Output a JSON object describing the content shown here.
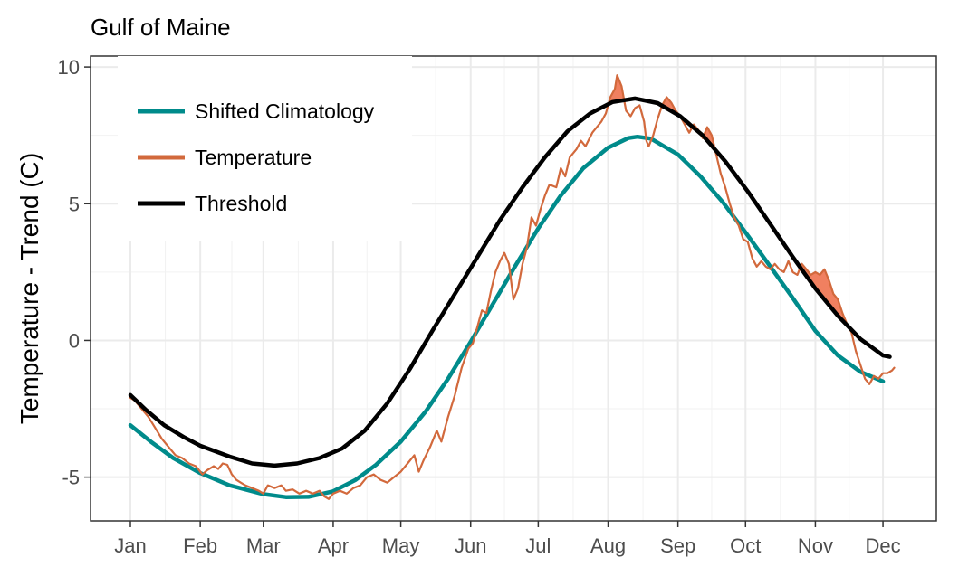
{
  "chart_data": {
    "type": "line",
    "title": "Gulf of Maine",
    "xlabel": "",
    "ylabel": "Temperature - Trend (C)",
    "xlim": [
      1,
      341
    ],
    "ylim": [
      -6.6,
      10.4
    ],
    "x_ticks": [
      {
        "label": "Jan",
        "x": 1
      },
      {
        "label": "Feb",
        "x": 32
      },
      {
        "label": "Mar",
        "x": 60
      },
      {
        "label": "Apr",
        "x": 91
      },
      {
        "label": "May",
        "x": 121
      },
      {
        "label": "Jun",
        "x": 152
      },
      {
        "label": "Jul",
        "x": 182
      },
      {
        "label": "Aug",
        "x": 213
      },
      {
        "label": "Sep",
        "x": 244
      },
      {
        "label": "Oct",
        "x": 274
      },
      {
        "label": "Nov",
        "x": 305
      },
      {
        "label": "Dec",
        "x": 335
      }
    ],
    "y_ticks": [
      -5,
      0,
      5,
      10
    ],
    "grid": true,
    "legend_position": "top-left",
    "heatwave_fill_color": "#f08060",
    "series": [
      {
        "name": "Shifted Climatology",
        "color": "#008b8b",
        "points": [
          [
            1,
            -3.1
          ],
          [
            10,
            -3.7
          ],
          [
            20,
            -4.3
          ],
          [
            32,
            -4.85
          ],
          [
            45,
            -5.3
          ],
          [
            60,
            -5.62
          ],
          [
            70,
            -5.73
          ],
          [
            80,
            -5.72
          ],
          [
            91,
            -5.52
          ],
          [
            101,
            -5.1
          ],
          [
            110,
            -4.55
          ],
          [
            121,
            -3.7
          ],
          [
            132,
            -2.6
          ],
          [
            142,
            -1.4
          ],
          [
            152,
            -0.05
          ],
          [
            162,
            1.35
          ],
          [
            172,
            2.75
          ],
          [
            182,
            4.1
          ],
          [
            192,
            5.3
          ],
          [
            202,
            6.3
          ],
          [
            213,
            7.05
          ],
          [
            222,
            7.4
          ],
          [
            226,
            7.45
          ],
          [
            232,
            7.38
          ],
          [
            244,
            6.8
          ],
          [
            254,
            6.0
          ],
          [
            264,
            5.05
          ],
          [
            274,
            3.95
          ],
          [
            285,
            2.7
          ],
          [
            295,
            1.55
          ],
          [
            305,
            0.35
          ],
          [
            315,
            -0.55
          ],
          [
            325,
            -1.15
          ],
          [
            335,
            -1.5
          ]
        ]
      },
      {
        "name": "Temperature",
        "color": "#d2693c",
        "points": [
          [
            1,
            -2.1
          ],
          [
            3,
            -2.2
          ],
          [
            6,
            -2.5
          ],
          [
            9,
            -2.8
          ],
          [
            12,
            -3.2
          ],
          [
            15,
            -3.6
          ],
          [
            18,
            -3.9
          ],
          [
            21,
            -4.2
          ],
          [
            24,
            -4.3
          ],
          [
            27,
            -4.5
          ],
          [
            30,
            -4.6
          ],
          [
            33,
            -4.9
          ],
          [
            35,
            -4.75
          ],
          [
            38,
            -4.6
          ],
          [
            40,
            -4.7
          ],
          [
            42,
            -4.5
          ],
          [
            44,
            -4.55
          ],
          [
            46,
            -4.9
          ],
          [
            48,
            -5.1
          ],
          [
            50,
            -5.2
          ],
          [
            52,
            -5.3
          ],
          [
            55,
            -5.4
          ],
          [
            58,
            -5.5
          ],
          [
            60,
            -5.6
          ],
          [
            62,
            -5.3
          ],
          [
            65,
            -5.4
          ],
          [
            68,
            -5.3
          ],
          [
            70,
            -5.5
          ],
          [
            73,
            -5.45
          ],
          [
            76,
            -5.6
          ],
          [
            79,
            -5.5
          ],
          [
            82,
            -5.6
          ],
          [
            85,
            -5.5
          ],
          [
            87,
            -5.7
          ],
          [
            89,
            -5.8
          ],
          [
            91,
            -5.6
          ],
          [
            94,
            -5.5
          ],
          [
            97,
            -5.6
          ],
          [
            100,
            -5.4
          ],
          [
            103,
            -5.3
          ],
          [
            106,
            -5.0
          ],
          [
            109,
            -4.9
          ],
          [
            112,
            -5.1
          ],
          [
            115,
            -5.2
          ],
          [
            118,
            -5.0
          ],
          [
            121,
            -4.8
          ],
          [
            124,
            -4.5
          ],
          [
            127,
            -4.2
          ],
          [
            129,
            -4.8
          ],
          [
            131,
            -4.4
          ],
          [
            134,
            -3.9
          ],
          [
            137,
            -3.3
          ],
          [
            139,
            -3.7
          ],
          [
            142,
            -2.8
          ],
          [
            145,
            -2.0
          ],
          [
            148,
            -1.0
          ],
          [
            151,
            -0.3
          ],
          [
            153,
            -0.1
          ],
          [
            155,
            0.5
          ],
          [
            157,
            1.1
          ],
          [
            159,
            1.0
          ],
          [
            161,
            1.8
          ],
          [
            163,
            2.5
          ],
          [
            165,
            2.9
          ],
          [
            167,
            3.2
          ],
          [
            169,
            2.8
          ],
          [
            171,
            1.5
          ],
          [
            173,
            1.9
          ],
          [
            175,
            2.8
          ],
          [
            177,
            3.4
          ],
          [
            179,
            4.5
          ],
          [
            181,
            4.2
          ],
          [
            183,
            4.8
          ],
          [
            185,
            5.3
          ],
          [
            187,
            5.7
          ],
          [
            190,
            5.6
          ],
          [
            192,
            6.3
          ],
          [
            194,
            6.0
          ],
          [
            196,
            6.7
          ],
          [
            199,
            7.0
          ],
          [
            201,
            7.3
          ],
          [
            203,
            7.1
          ],
          [
            206,
            7.6
          ],
          [
            208,
            7.8
          ],
          [
            210,
            8.0
          ],
          [
            212,
            8.3
          ],
          [
            214,
            8.9
          ],
          [
            216,
            9.2
          ],
          [
            217,
            9.7
          ],
          [
            219,
            9.3
          ],
          [
            221,
            8.4
          ],
          [
            223,
            8.2
          ],
          [
            225,
            8.5
          ],
          [
            227,
            8.6
          ],
          [
            229,
            8.0
          ],
          [
            230,
            7.3
          ],
          [
            231,
            7.1
          ],
          [
            233,
            7.5
          ],
          [
            235,
            8.1
          ],
          [
            237,
            8.6
          ],
          [
            239,
            8.9
          ],
          [
            241,
            8.7
          ],
          [
            243,
            8.4
          ],
          [
            245,
            8.2
          ],
          [
            247,
            7.9
          ],
          [
            249,
            7.6
          ],
          [
            251,
            7.9
          ],
          [
            253,
            7.7
          ],
          [
            255,
            7.4
          ],
          [
            257,
            7.8
          ],
          [
            259,
            7.5
          ],
          [
            261,
            6.8
          ],
          [
            263,
            6.1
          ],
          [
            265,
            5.6
          ],
          [
            267,
            5.0
          ],
          [
            269,
            4.5
          ],
          [
            271,
            4.2
          ],
          [
            273,
            3.7
          ],
          [
            275,
            3.6
          ],
          [
            277,
            3.0
          ],
          [
            279,
            2.7
          ],
          [
            281,
            2.9
          ],
          [
            283,
            2.7
          ],
          [
            285,
            2.6
          ],
          [
            287,
            2.8
          ],
          [
            289,
            2.6
          ],
          [
            291,
            2.5
          ],
          [
            293,
            2.9
          ],
          [
            295,
            2.5
          ],
          [
            297,
            2.4
          ],
          [
            299,
            2.8
          ],
          [
            301,
            2.6
          ],
          [
            303,
            2.4
          ],
          [
            305,
            2.5
          ],
          [
            307,
            2.4
          ],
          [
            309,
            2.6
          ],
          [
            311,
            2.2
          ],
          [
            313,
            1.7
          ],
          [
            315,
            1.5
          ],
          [
            317,
            1.0
          ],
          [
            319,
            0.6
          ],
          [
            321,
            0.3
          ],
          [
            323,
            -0.4
          ],
          [
            325,
            -0.9
          ],
          [
            327,
            -1.4
          ],
          [
            329,
            -1.6
          ],
          [
            331,
            -1.3
          ],
          [
            333,
            -1.4
          ],
          [
            335,
            -1.2
          ],
          [
            337,
            -1.2
          ],
          [
            339,
            -1.1
          ],
          [
            340,
            -1.0
          ]
        ]
      },
      {
        "name": "Threshold",
        "color": "#000000",
        "points": [
          [
            1,
            -2.0
          ],
          [
            8,
            -2.55
          ],
          [
            16,
            -3.1
          ],
          [
            25,
            -3.55
          ],
          [
            32,
            -3.85
          ],
          [
            45,
            -4.25
          ],
          [
            55,
            -4.5
          ],
          [
            65,
            -4.58
          ],
          [
            75,
            -4.5
          ],
          [
            85,
            -4.3
          ],
          [
            95,
            -3.95
          ],
          [
            105,
            -3.3
          ],
          [
            115,
            -2.3
          ],
          [
            125,
            -1.05
          ],
          [
            135,
            0.35
          ],
          [
            145,
            1.7
          ],
          [
            155,
            3.05
          ],
          [
            165,
            4.4
          ],
          [
            175,
            5.6
          ],
          [
            185,
            6.7
          ],
          [
            195,
            7.65
          ],
          [
            205,
            8.3
          ],
          [
            215,
            8.72
          ],
          [
            225,
            8.85
          ],
          [
            235,
            8.68
          ],
          [
            245,
            8.2
          ],
          [
            255,
            7.5
          ],
          [
            265,
            6.55
          ],
          [
            275,
            5.45
          ],
          [
            285,
            4.25
          ],
          [
            295,
            3.05
          ],
          [
            305,
            1.9
          ],
          [
            315,
            0.9
          ],
          [
            325,
            0.05
          ],
          [
            335,
            -0.55
          ],
          [
            338,
            -0.6
          ]
        ]
      }
    ]
  }
}
